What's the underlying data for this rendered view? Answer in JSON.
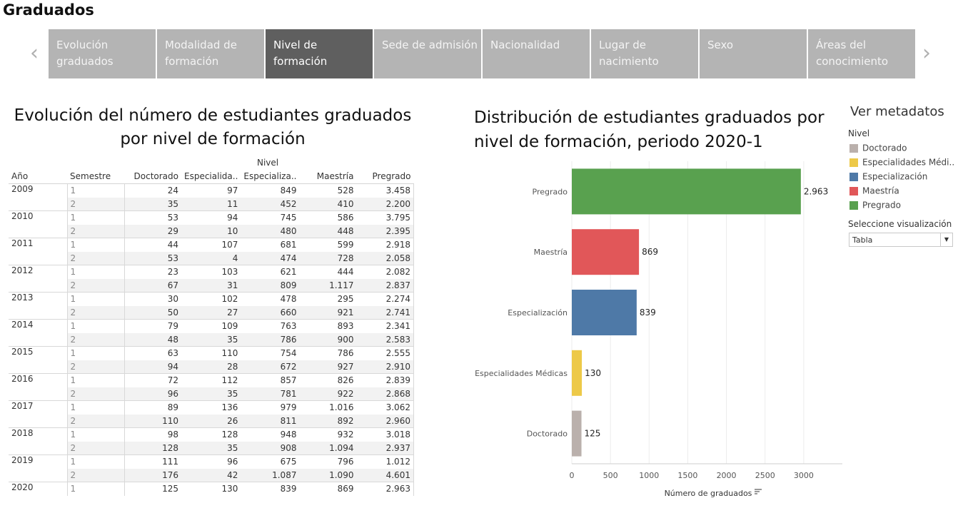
{
  "app": {
    "title": "Graduados"
  },
  "nav": {
    "prev_icon": "chevron-left-icon",
    "next_icon": "chevron-right-icon",
    "tabs": [
      {
        "label_line1": "Evolución",
        "label_line2": "graduados"
      },
      {
        "label_line1": "Modalidad de",
        "label_line2": "formación"
      },
      {
        "label_line1": "Nivel de",
        "label_line2": "formación"
      },
      {
        "label_line1": "Sede de admisión",
        "label_line2": ""
      },
      {
        "label_line1": "Nacionalidad",
        "label_line2": ""
      },
      {
        "label_line1": "Lugar de",
        "label_line2": "nacimiento"
      },
      {
        "label_line1": "Sexo",
        "label_line2": ""
      },
      {
        "label_line1": "Áreas del",
        "label_line2": "conocimiento"
      }
    ],
    "active_tab": "Nivel de formación"
  },
  "table_panel": {
    "title_line1": "Evolución del número de estudiantes graduados",
    "title_line2": "por nivel de formación",
    "group_header": "Nivel",
    "columns": [
      "Año",
      "Semestre",
      "Doctorado",
      "Especialida..",
      "Especializa..",
      "Maestría",
      "Pregrado"
    ],
    "rows": [
      {
        "year": "2009",
        "sem": "1",
        "v": [
          "24",
          "97",
          "849",
          "528",
          "3.458"
        ]
      },
      {
        "year": "",
        "sem": "2",
        "v": [
          "35",
          "11",
          "452",
          "410",
          "2.200"
        ]
      },
      {
        "year": "2010",
        "sem": "1",
        "v": [
          "53",
          "94",
          "745",
          "586",
          "3.795"
        ]
      },
      {
        "year": "",
        "sem": "2",
        "v": [
          "29",
          "10",
          "480",
          "448",
          "2.395"
        ]
      },
      {
        "year": "2011",
        "sem": "1",
        "v": [
          "44",
          "107",
          "681",
          "599",
          "2.918"
        ]
      },
      {
        "year": "",
        "sem": "2",
        "v": [
          "53",
          "4",
          "474",
          "728",
          "2.058"
        ]
      },
      {
        "year": "2012",
        "sem": "1",
        "v": [
          "23",
          "103",
          "621",
          "444",
          "2.082"
        ]
      },
      {
        "year": "",
        "sem": "2",
        "v": [
          "67",
          "31",
          "809",
          "1.117",
          "2.837"
        ]
      },
      {
        "year": "2013",
        "sem": "1",
        "v": [
          "30",
          "102",
          "478",
          "295",
          "2.274"
        ]
      },
      {
        "year": "",
        "sem": "2",
        "v": [
          "50",
          "27",
          "660",
          "921",
          "2.741"
        ]
      },
      {
        "year": "2014",
        "sem": "1",
        "v": [
          "79",
          "109",
          "763",
          "893",
          "2.341"
        ]
      },
      {
        "year": "",
        "sem": "2",
        "v": [
          "48",
          "35",
          "786",
          "900",
          "2.583"
        ]
      },
      {
        "year": "2015",
        "sem": "1",
        "v": [
          "63",
          "110",
          "754",
          "786",
          "2.555"
        ]
      },
      {
        "year": "",
        "sem": "2",
        "v": [
          "94",
          "28",
          "672",
          "927",
          "2.910"
        ]
      },
      {
        "year": "2016",
        "sem": "1",
        "v": [
          "72",
          "112",
          "857",
          "826",
          "2.839"
        ]
      },
      {
        "year": "",
        "sem": "2",
        "v": [
          "96",
          "35",
          "781",
          "922",
          "2.868"
        ]
      },
      {
        "year": "2017",
        "sem": "1",
        "v": [
          "89",
          "136",
          "979",
          "1.016",
          "3.062"
        ]
      },
      {
        "year": "",
        "sem": "2",
        "v": [
          "110",
          "26",
          "811",
          "892",
          "2.960"
        ]
      },
      {
        "year": "2018",
        "sem": "1",
        "v": [
          "98",
          "128",
          "948",
          "932",
          "3.018"
        ]
      },
      {
        "year": "",
        "sem": "2",
        "v": [
          "128",
          "35",
          "908",
          "1.094",
          "2.937"
        ]
      },
      {
        "year": "2019",
        "sem": "1",
        "v": [
          "111",
          "96",
          "675",
          "796",
          "1.012"
        ]
      },
      {
        "year": "",
        "sem": "2",
        "v": [
          "176",
          "42",
          "1.087",
          "1.090",
          "4.601"
        ]
      },
      {
        "year": "2020",
        "sem": "1",
        "v": [
          "125",
          "130",
          "839",
          "869",
          "2.963"
        ]
      }
    ]
  },
  "chart_data": {
    "type": "bar",
    "orientation": "horizontal",
    "title": "Distribución de estudiantes graduados por nivel de formación, periodo 2020-1",
    "title_line1": "Distribución de estudiantes graduados por",
    "title_line2": "nivel de formación, periodo 2020-1",
    "categories": [
      "Pregrado",
      "Maestría",
      "Especialización",
      "Especialidades Médicas",
      "Doctorado"
    ],
    "values": [
      2963,
      869,
      839,
      130,
      125
    ],
    "value_labels": [
      "2.963",
      "869",
      "839",
      "130",
      "125"
    ],
    "colors": [
      "#59a14f",
      "#e15759",
      "#4e79a7",
      "#edc948",
      "#bab0ac"
    ],
    "xlabel": "Número de graduados",
    "xticks": [
      "0",
      "500",
      "1000",
      "1500",
      "2000",
      "2500",
      "3000"
    ],
    "xlim": [
      0,
      3500
    ],
    "grid": true,
    "sort_icon": "sort-descending-icon"
  },
  "side_panel": {
    "metadata_link": "Ver metadatos",
    "legend_title": "Nivel",
    "legend": [
      {
        "label": "Doctorado",
        "color": "#bab0ac"
      },
      {
        "label": "Especialidades Médi..",
        "color": "#edc948"
      },
      {
        "label": "Especialización",
        "color": "#4e79a7"
      },
      {
        "label": "Maestría",
        "color": "#e15759"
      },
      {
        "label": "Pregrado",
        "color": "#59a14f"
      }
    ],
    "viz_label": "Seleccione visualización",
    "viz_value": "Tabla",
    "viz_icon": "dropdown-arrow-icon"
  }
}
